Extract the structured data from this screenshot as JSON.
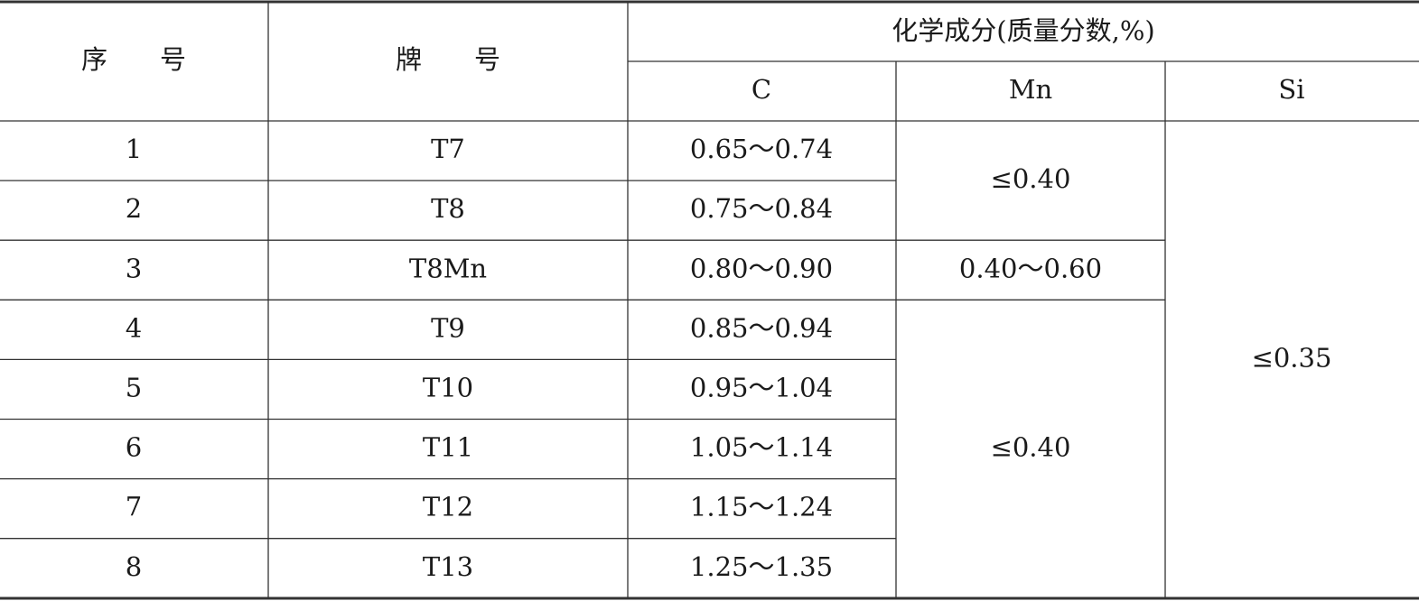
{
  "table": {
    "header": {
      "index": "序　　号",
      "grade": "牌　　号",
      "composition": "化学成分(质量分数,%)",
      "columns": [
        "C",
        "Mn",
        "Si"
      ]
    },
    "rows": [
      {
        "index": "1",
        "grade": "T7",
        "C": "0.65～0.74"
      },
      {
        "index": "2",
        "grade": "T8",
        "C": "0.75～0.84"
      },
      {
        "index": "3",
        "grade": "T8Mn",
        "C": "0.80～0.90"
      },
      {
        "index": "4",
        "grade": "T9",
        "C": "0.85～0.94"
      },
      {
        "index": "5",
        "grade": "T10",
        "C": "0.95～1.04"
      },
      {
        "index": "6",
        "grade": "T11",
        "C": "1.05～1.14"
      },
      {
        "index": "7",
        "grade": "T12",
        "C": "1.15～1.24"
      },
      {
        "index": "8",
        "grade": "T13",
        "C": "1.25～1.35"
      }
    ],
    "mn": [
      "≤0.40",
      "0.40～0.60",
      "≤0.40"
    ],
    "si": "≤0.35"
  }
}
